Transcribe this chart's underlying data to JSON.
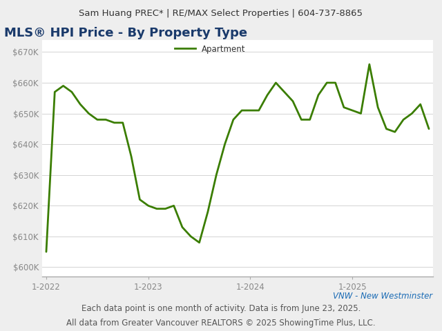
{
  "header": "Sam Huang PREC* | RE/MAX Select Properties | 604-737-8865",
  "title": "MLS® HPI Price - By Property Type",
  "legend_label": "Apartment",
  "line_color": "#3a7d00",
  "footer_left": "VNW - New Westminster",
  "footer_center": "Each data point is one month of activity. Data is from June 23, 2025.",
  "footer_bottom": "All data from Greater Vancouver REALTORS © 2025 ShowingTime Plus, LLC.",
  "yticks": [
    600000,
    610000,
    620000,
    630000,
    640000,
    650000,
    660000,
    670000
  ],
  "ytick_labels": [
    "$600K",
    "$610K",
    "$620K",
    "$630K",
    "$640K",
    "$650K",
    "$660K",
    "$670K"
  ],
  "xtick_labels": [
    "1-2022",
    "1-2023",
    "1-2024",
    "1-2025"
  ],
  "xtick_positions": [
    0,
    12,
    24,
    36
  ],
  "ylim": [
    597000,
    674000
  ],
  "xlim": [
    -0.5,
    45.5
  ],
  "background_color": "#eeeeee",
  "plot_bg_color": "#ffffff",
  "values": [
    605000,
    657000,
    659000,
    657000,
    653000,
    650000,
    648000,
    648000,
    647000,
    647000,
    636000,
    622000,
    620000,
    619000,
    619000,
    620000,
    613000,
    610000,
    608000,
    618000,
    630000,
    640000,
    648000,
    651000,
    651000,
    651000,
    656000,
    660000,
    657000,
    654000,
    648000,
    648000,
    656000,
    660000,
    660000,
    652000,
    651000,
    650000,
    666000,
    652000,
    645000,
    644000,
    648000,
    650000,
    653000,
    645000
  ],
  "title_color": "#1a3a6b",
  "title_fontsize": 13,
  "header_fontsize": 9.5,
  "footer_fontsize": 8.5,
  "footer_color": "#555555",
  "footer_left_color": "#1a6bb5",
  "grid_color": "#cccccc",
  "tick_label_color": "#888888"
}
